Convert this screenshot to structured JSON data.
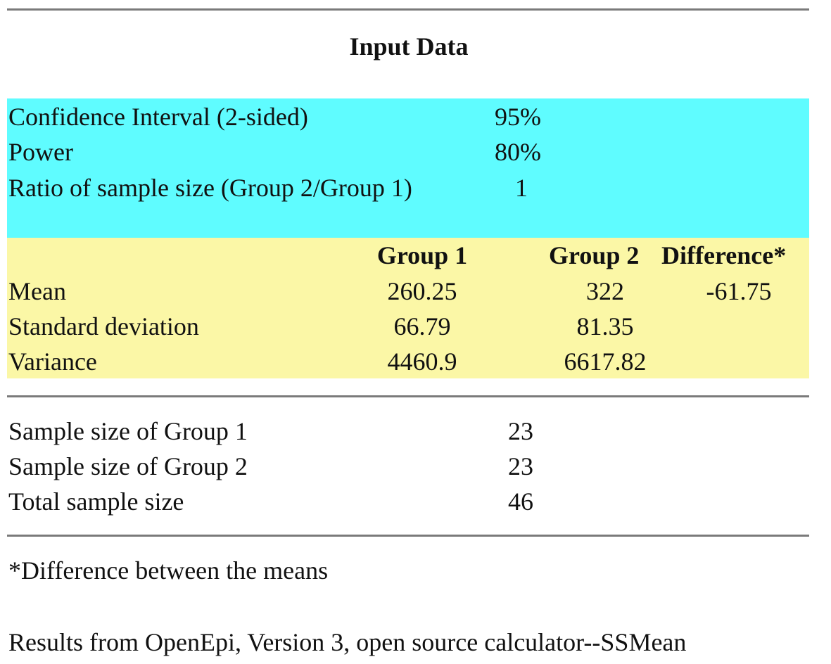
{
  "title": "Input Data",
  "params": [
    {
      "label": "Confidence Interval (2-sided)",
      "value": "95%"
    },
    {
      "label": "Power",
      "value": "80%"
    },
    {
      "label": "Ratio of sample size (Group 2/Group 1)",
      "value": "1"
    }
  ],
  "stats_table": {
    "headers": [
      "Group 1",
      "Group 2",
      "Difference*"
    ],
    "rows": [
      {
        "label": "Mean",
        "group1": "260.25",
        "group2": "322",
        "difference": "-61.75"
      },
      {
        "label": "Standard deviation",
        "group1": "66.79",
        "group2": "81.35",
        "difference": ""
      },
      {
        "label": "Variance",
        "group1": "4460.9",
        "group2": "6617.82",
        "difference": ""
      }
    ]
  },
  "results": [
    {
      "label": "Sample size of Group 1",
      "value": "23"
    },
    {
      "label": "Sample size of Group 2",
      "value": "23"
    },
    {
      "label": "Total sample size",
      "value": "46"
    }
  ],
  "footnote": "*Difference between the means",
  "source": "Results from OpenEpi, Version 3, open source calculator--SSMean",
  "colors": {
    "params_background": "#5ffcff",
    "stats_background": "#fbf7a6",
    "rule": "#7a7a7a"
  }
}
